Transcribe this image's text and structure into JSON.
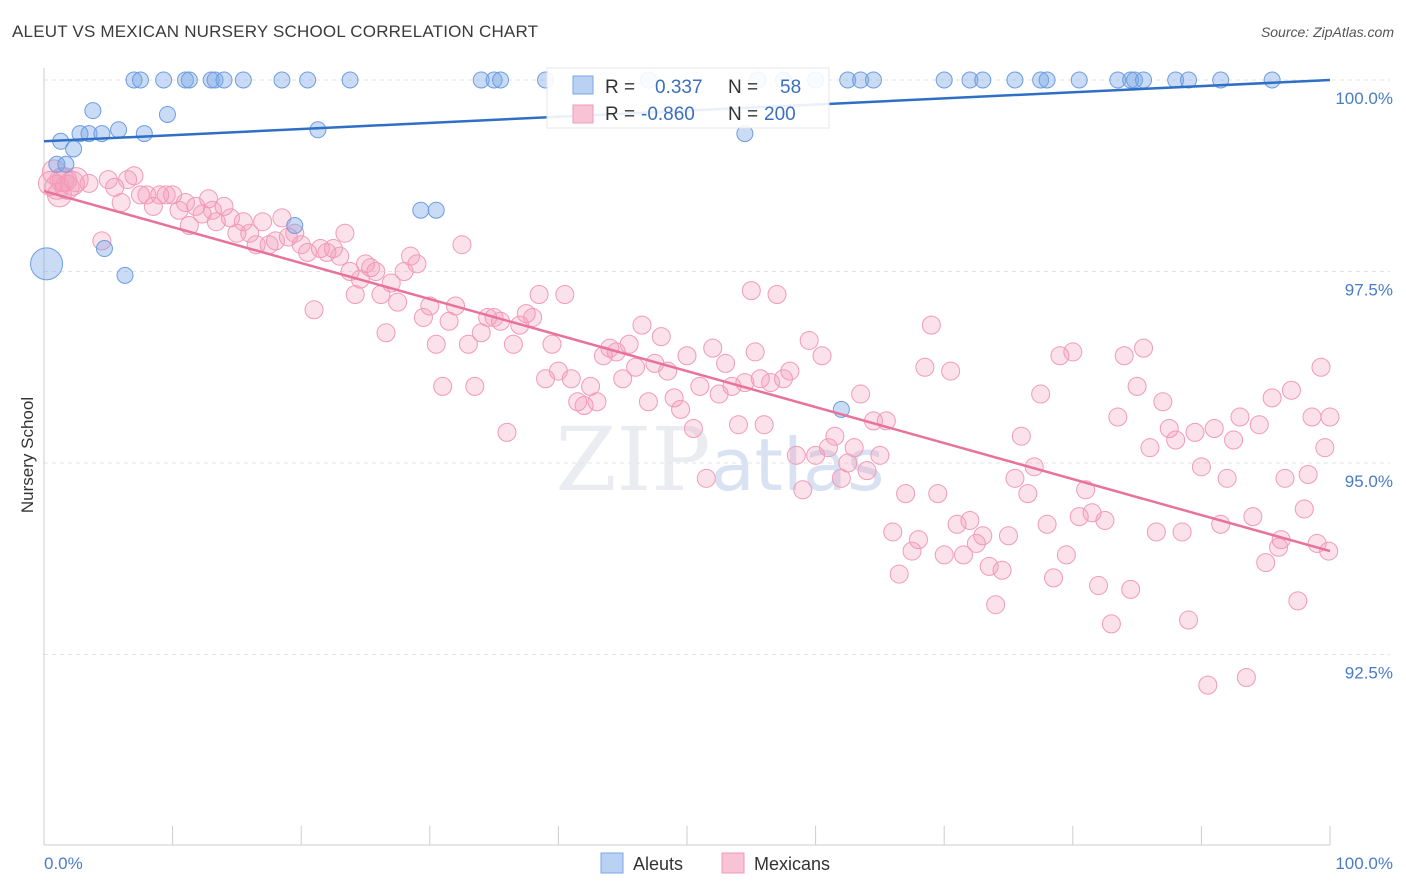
{
  "title": "ALEUT VS MEXICAN NURSERY SCHOOL CORRELATION CHART",
  "source": "Source: ZipAtlas.com",
  "watermark": "ZIPatlas",
  "colors": {
    "aleut": "#7aa7e6",
    "aleut_line": "#2f6fc6",
    "mexican": "#f29ab8",
    "mexican_line": "#e8739a",
    "tick": "#4a7cc4"
  },
  "legend": {
    "r_label": "R =",
    "n_label": "N =",
    "aleut_r": "0.337",
    "aleut_n": "58",
    "mexican_r": "-0.860",
    "mexican_n": "200"
  },
  "chart_data": {
    "type": "scatter",
    "title": "ALEUT VS MEXICAN NURSERY SCHOOL CORRELATION CHART",
    "xlabel": "",
    "ylabel": "Nursery School",
    "x_tick_labels": [
      "0.0%",
      "100.0%"
    ],
    "y_tick_labels": [
      "100.0%",
      "97.5%",
      "95.0%",
      "92.5%"
    ],
    "y_ticks": [
      100.0,
      97.5,
      95.0,
      92.5
    ],
    "xlim": [
      0,
      100
    ],
    "ylim": [
      90.0,
      100.2
    ],
    "grid": true,
    "legend_position": "bottom-center",
    "series": [
      {
        "name": "Aleuts",
        "r": 0.337,
        "n": 58,
        "trend": [
          [
            0,
            99.2
          ],
          [
            100,
            100.0
          ]
        ],
        "points": [
          [
            0.2,
            97.6
          ],
          [
            1.0,
            98.9
          ],
          [
            1.3,
            99.2
          ],
          [
            1.7,
            98.9
          ],
          [
            2.3,
            99.1
          ],
          [
            2.8,
            99.3
          ],
          [
            3.5,
            99.3
          ],
          [
            3.8,
            99.6
          ],
          [
            4.5,
            99.3
          ],
          [
            4.7,
            97.8
          ],
          [
            5.8,
            99.35
          ],
          [
            6.3,
            97.45
          ],
          [
            7.0,
            100
          ],
          [
            7.5,
            100
          ],
          [
            7.8,
            99.3
          ],
          [
            9.3,
            100
          ],
          [
            9.6,
            99.55
          ],
          [
            11.0,
            100
          ],
          [
            11.3,
            100
          ],
          [
            13.0,
            100
          ],
          [
            13.3,
            100
          ],
          [
            14.0,
            100
          ],
          [
            15.5,
            100
          ],
          [
            18.5,
            100
          ],
          [
            19.5,
            98.1
          ],
          [
            20.5,
            100
          ],
          [
            21.3,
            99.35
          ],
          [
            23.8,
            100
          ],
          [
            29.3,
            98.3
          ],
          [
            30.5,
            98.3
          ],
          [
            34.0,
            100
          ],
          [
            35.0,
            100
          ],
          [
            35.5,
            100
          ],
          [
            39.0,
            100
          ],
          [
            47.0,
            100
          ],
          [
            54.5,
            99.3
          ],
          [
            55.5,
            100
          ],
          [
            57.5,
            100
          ],
          [
            60.0,
            100
          ],
          [
            62.0,
            95.7
          ],
          [
            62.5,
            100
          ],
          [
            63.5,
            100
          ],
          [
            64.5,
            100
          ],
          [
            70.0,
            100
          ],
          [
            72.0,
            100
          ],
          [
            73.0,
            100
          ],
          [
            75.5,
            100
          ],
          [
            77.5,
            100
          ],
          [
            78.0,
            100
          ],
          [
            80.5,
            100
          ],
          [
            83.5,
            100
          ],
          [
            84.5,
            100
          ],
          [
            84.8,
            100
          ],
          [
            85.5,
            100
          ],
          [
            88.0,
            100
          ],
          [
            89.0,
            100
          ],
          [
            91.5,
            100
          ],
          [
            95.5,
            100
          ]
        ]
      },
      {
        "name": "Mexicans",
        "r": -0.86,
        "n": 200,
        "trend": [
          [
            0,
            98.55
          ],
          [
            100,
            93.85
          ]
        ],
        "points": [
          [
            0.5,
            98.65
          ],
          [
            0.8,
            98.8
          ],
          [
            1.0,
            98.6
          ],
          [
            1.2,
            98.5
          ],
          [
            1.4,
            98.7
          ],
          [
            1.6,
            98.7
          ],
          [
            1.8,
            98.6
          ],
          [
            2.2,
            98.65
          ],
          [
            2.5,
            98.7
          ],
          [
            3.5,
            98.65
          ],
          [
            4.5,
            97.9
          ],
          [
            5.0,
            98.7
          ],
          [
            5.5,
            98.6
          ],
          [
            6.0,
            98.4
          ],
          [
            6.5,
            98.7
          ],
          [
            7.0,
            98.75
          ],
          [
            7.5,
            98.5
          ],
          [
            8.0,
            98.5
          ],
          [
            8.5,
            98.35
          ],
          [
            9.0,
            98.5
          ],
          [
            9.5,
            98.5
          ],
          [
            10.0,
            98.5
          ],
          [
            10.5,
            98.3
          ],
          [
            11.0,
            98.4
          ],
          [
            11.3,
            98.1
          ],
          [
            11.8,
            98.35
          ],
          [
            12.3,
            98.25
          ],
          [
            12.8,
            98.45
          ],
          [
            13.1,
            98.3
          ],
          [
            13.4,
            98.15
          ],
          [
            14.0,
            98.35
          ],
          [
            14.5,
            98.2
          ],
          [
            15.0,
            98.0
          ],
          [
            15.5,
            98.15
          ],
          [
            16.0,
            98.0
          ],
          [
            16.5,
            97.85
          ],
          [
            17.0,
            98.15
          ],
          [
            17.5,
            97.85
          ],
          [
            18.0,
            97.9
          ],
          [
            18.5,
            98.2
          ],
          [
            19.0,
            97.95
          ],
          [
            19.5,
            98.0
          ],
          [
            20.0,
            97.85
          ],
          [
            20.5,
            97.75
          ],
          [
            21.0,
            97.0
          ],
          [
            21.5,
            97.8
          ],
          [
            22.0,
            97.75
          ],
          [
            22.5,
            97.8
          ],
          [
            23.0,
            97.7
          ],
          [
            23.4,
            98.0
          ],
          [
            23.8,
            97.5
          ],
          [
            24.2,
            97.2
          ],
          [
            24.6,
            97.4
          ],
          [
            25.0,
            97.6
          ],
          [
            25.4,
            97.55
          ],
          [
            25.8,
            97.5
          ],
          [
            26.2,
            97.2
          ],
          [
            26.6,
            96.7
          ],
          [
            27.0,
            97.35
          ],
          [
            27.5,
            97.1
          ],
          [
            28.0,
            97.5
          ],
          [
            28.5,
            97.7
          ],
          [
            29.0,
            97.6
          ],
          [
            29.5,
            96.9
          ],
          [
            30.0,
            97.05
          ],
          [
            30.5,
            96.55
          ],
          [
            31.0,
            96.0
          ],
          [
            31.5,
            96.85
          ],
          [
            32.0,
            97.05
          ],
          [
            32.5,
            97.85
          ],
          [
            33.0,
            96.55
          ],
          [
            33.5,
            96.0
          ],
          [
            34.0,
            96.7
          ],
          [
            34.5,
            96.9
          ],
          [
            35.0,
            96.9
          ],
          [
            35.5,
            96.85
          ],
          [
            36.0,
            95.4
          ],
          [
            36.5,
            96.55
          ],
          [
            37.0,
            96.8
          ],
          [
            37.5,
            96.95
          ],
          [
            38.0,
            96.9
          ],
          [
            38.5,
            97.2
          ],
          [
            39.0,
            96.1
          ],
          [
            39.5,
            96.55
          ],
          [
            40.0,
            96.2
          ],
          [
            40.5,
            97.2
          ],
          [
            41.0,
            96.1
          ],
          [
            41.5,
            95.8
          ],
          [
            42.0,
            95.75
          ],
          [
            42.5,
            96.0
          ],
          [
            43.0,
            95.8
          ],
          [
            43.5,
            96.4
          ],
          [
            44.0,
            96.5
          ],
          [
            44.5,
            96.45
          ],
          [
            45.0,
            96.1
          ],
          [
            45.5,
            96.55
          ],
          [
            46.0,
            96.25
          ],
          [
            46.5,
            96.8
          ],
          [
            47.0,
            95.8
          ],
          [
            47.5,
            96.3
          ],
          [
            48.0,
            96.65
          ],
          [
            48.5,
            96.2
          ],
          [
            49.0,
            95.85
          ],
          [
            49.5,
            95.7
          ],
          [
            50.0,
            96.4
          ],
          [
            50.5,
            95.45
          ],
          [
            51.0,
            96.0
          ],
          [
            51.5,
            94.8
          ],
          [
            52.0,
            96.5
          ],
          [
            52.5,
            95.9
          ],
          [
            53.0,
            96.3
          ],
          [
            53.5,
            96.0
          ],
          [
            54.0,
            95.5
          ],
          [
            54.5,
            96.05
          ],
          [
            55.0,
            97.25
          ],
          [
            55.3,
            96.45
          ],
          [
            55.7,
            96.1
          ],
          [
            56.0,
            95.5
          ],
          [
            56.5,
            96.05
          ],
          [
            57.0,
            97.2
          ],
          [
            57.5,
            96.1
          ],
          [
            58.0,
            96.2
          ],
          [
            58.5,
            95.1
          ],
          [
            59.0,
            94.65
          ],
          [
            59.5,
            96.6
          ],
          [
            60.0,
            95.1
          ],
          [
            60.5,
            96.4
          ],
          [
            61.0,
            95.2
          ],
          [
            61.5,
            95.35
          ],
          [
            62.0,
            94.8
          ],
          [
            62.5,
            95.0
          ],
          [
            63.0,
            95.2
          ],
          [
            63.5,
            95.9
          ],
          [
            64.0,
            94.9
          ],
          [
            64.5,
            95.55
          ],
          [
            65.0,
            95.1
          ],
          [
            65.5,
            95.55
          ],
          [
            66.0,
            94.1
          ],
          [
            66.5,
            93.55
          ],
          [
            67.0,
            94.6
          ],
          [
            67.5,
            93.85
          ],
          [
            68.0,
            94.0
          ],
          [
            68.5,
            96.25
          ],
          [
            69.0,
            96.8
          ],
          [
            69.5,
            94.6
          ],
          [
            70.0,
            93.8
          ],
          [
            70.5,
            96.2
          ],
          [
            71.0,
            94.2
          ],
          [
            71.5,
            93.8
          ],
          [
            72.0,
            94.25
          ],
          [
            72.5,
            93.95
          ],
          [
            73.0,
            94.05
          ],
          [
            73.5,
            93.65
          ],
          [
            74.0,
            93.15
          ],
          [
            74.5,
            93.6
          ],
          [
            75.0,
            94.05
          ],
          [
            75.5,
            94.8
          ],
          [
            76.0,
            95.35
          ],
          [
            76.5,
            94.6
          ],
          [
            77.0,
            94.95
          ],
          [
            77.5,
            95.9
          ],
          [
            78.0,
            94.2
          ],
          [
            78.5,
            93.5
          ],
          [
            79.0,
            96.4
          ],
          [
            79.5,
            93.8
          ],
          [
            80.0,
            96.45
          ],
          [
            80.5,
            94.3
          ],
          [
            81.0,
            94.65
          ],
          [
            81.5,
            94.35
          ],
          [
            82.0,
            93.4
          ],
          [
            82.5,
            94.25
          ],
          [
            83.0,
            92.9
          ],
          [
            83.5,
            95.6
          ],
          [
            84.0,
            96.4
          ],
          [
            84.5,
            93.35
          ],
          [
            85.0,
            96.0
          ],
          [
            85.5,
            96.5
          ],
          [
            86.0,
            95.2
          ],
          [
            86.5,
            94.1
          ],
          [
            87.0,
            95.8
          ],
          [
            87.5,
            95.45
          ],
          [
            88.0,
            95.3
          ],
          [
            88.5,
            94.1
          ],
          [
            89.0,
            92.95
          ],
          [
            89.5,
            95.4
          ],
          [
            90.0,
            94.95
          ],
          [
            90.5,
            92.1
          ],
          [
            91.0,
            95.45
          ],
          [
            91.5,
            94.2
          ],
          [
            92.0,
            94.8
          ],
          [
            92.5,
            95.3
          ],
          [
            93.0,
            95.6
          ],
          [
            93.5,
            92.2
          ],
          [
            94.0,
            94.3
          ],
          [
            94.5,
            95.5
          ],
          [
            95.0,
            93.7
          ],
          [
            95.5,
            95.85
          ],
          [
            96.0,
            93.9
          ],
          [
            96.5,
            94.8
          ],
          [
            97.0,
            95.95
          ],
          [
            97.5,
            93.2
          ],
          [
            98.0,
            94.4
          ],
          [
            98.3,
            94.85
          ],
          [
            98.6,
            95.6
          ],
          [
            99.0,
            93.95
          ],
          [
            99.3,
            96.25
          ],
          [
            99.6,
            95.2
          ],
          [
            99.9,
            93.85
          ],
          [
            100.0,
            95.6
          ],
          [
            96.2,
            94.0
          ]
        ]
      }
    ]
  }
}
